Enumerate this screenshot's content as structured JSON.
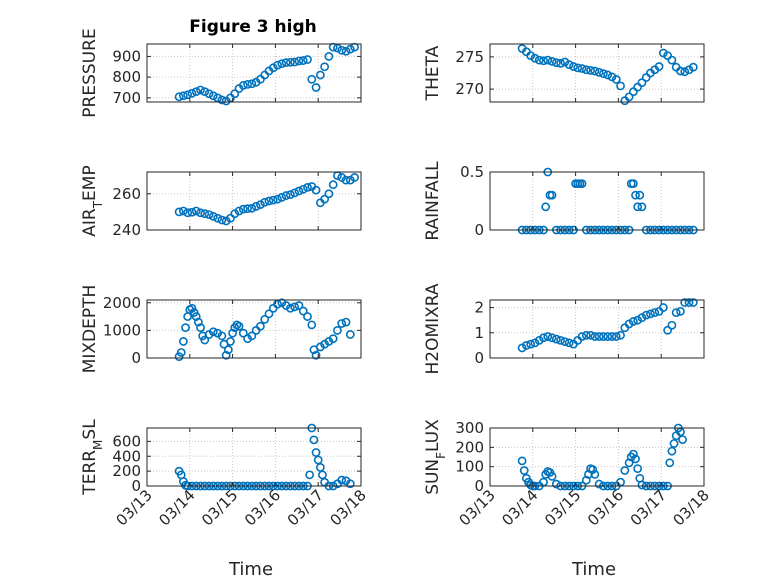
{
  "figure": {
    "title": "Figure 3 high",
    "xlabel": "Time",
    "marker_color": "#0072BD"
  },
  "chart_data": [
    {
      "type": "scatter",
      "panel": "top-left",
      "ylabel": "PRESSURE",
      "xlim": [
        0,
        5
      ],
      "ylim": [
        680,
        960
      ],
      "yticks": [
        700,
        800,
        900
      ],
      "xticks": [
        0,
        1,
        2,
        3,
        4,
        5
      ],
      "xticklabels": [
        "03/13",
        "03/14",
        "03/15",
        "03/16",
        "03/17",
        "03/18"
      ],
      "show_xticklabels": false,
      "grid": true,
      "x": [
        0.75,
        0.85,
        0.95,
        1.05,
        1.15,
        1.25,
        1.35,
        1.45,
        1.55,
        1.65,
        1.75,
        1.85,
        1.95,
        2.05,
        2.15,
        2.25,
        2.35,
        2.45,
        2.55,
        2.65,
        2.75,
        2.85,
        2.95,
        3.05,
        3.15,
        3.25,
        3.35,
        3.45,
        3.55,
        3.65,
        3.75,
        3.85,
        3.95,
        4.05,
        4.15,
        4.25,
        4.35,
        4.45,
        4.55,
        4.65,
        4.75,
        4.85
      ],
      "y": [
        705,
        710,
        715,
        722,
        730,
        738,
        730,
        720,
        710,
        700,
        690,
        685,
        700,
        720,
        745,
        760,
        765,
        768,
        775,
        790,
        810,
        830,
        845,
        858,
        865,
        870,
        872,
        873,
        878,
        880,
        885,
        790,
        750,
        810,
        850,
        900,
        945,
        940,
        930,
        925,
        935,
        945
      ]
    },
    {
      "type": "scatter",
      "panel": "top-right",
      "ylabel": "THETA",
      "xlim": [
        0,
        5
      ],
      "ylim": [
        268,
        277
      ],
      "yticks": [
        270,
        275
      ],
      "xticks": [
        0,
        1,
        2,
        3,
        4,
        5
      ],
      "xticklabels": [
        "03/13",
        "03/14",
        "03/15",
        "03/16",
        "03/17",
        "03/18"
      ],
      "show_xticklabels": false,
      "grid": true,
      "x": [
        0.75,
        0.85,
        0.95,
        1.05,
        1.15,
        1.25,
        1.35,
        1.45,
        1.55,
        1.65,
        1.75,
        1.85,
        1.95,
        2.05,
        2.15,
        2.25,
        2.35,
        2.45,
        2.55,
        2.65,
        2.75,
        2.85,
        2.95,
        3.05,
        3.15,
        3.25,
        3.35,
        3.45,
        3.55,
        3.65,
        3.75,
        3.85,
        3.95,
        4.05,
        4.15,
        4.25,
        4.35,
        4.45,
        4.55,
        4.65,
        4.75
      ],
      "y": [
        276.3,
        275.8,
        275.2,
        274.8,
        274.5,
        274.4,
        274.5,
        274.3,
        274.1,
        274.0,
        274.2,
        273.8,
        273.5,
        273.3,
        273.2,
        273.0,
        272.9,
        272.8,
        272.6,
        272.4,
        272.2,
        271.9,
        271.5,
        270.5,
        268.2,
        268.8,
        269.6,
        270.3,
        271.0,
        271.8,
        272.5,
        273.0,
        273.5,
        275.6,
        275.2,
        274.5,
        273.4,
        272.8,
        272.7,
        273.0,
        273.4
      ]
    },
    {
      "type": "scatter",
      "panel": "row2-left",
      "ylabel": "AIR_TEMP",
      "xlim": [
        0,
        5
      ],
      "ylim": [
        240,
        272
      ],
      "yticks": [
        240,
        260
      ],
      "xticks": [
        0,
        1,
        2,
        3,
        4,
        5
      ],
      "xticklabels": [
        "03/13",
        "03/14",
        "03/15",
        "03/16",
        "03/17",
        "03/18"
      ],
      "show_xticklabels": false,
      "grid": true,
      "x": [
        0.75,
        0.85,
        0.95,
        1.05,
        1.15,
        1.25,
        1.35,
        1.45,
        1.55,
        1.65,
        1.75,
        1.85,
        1.95,
        2.05,
        2.15,
        2.25,
        2.35,
        2.45,
        2.55,
        2.65,
        2.75,
        2.85,
        2.95,
        3.05,
        3.15,
        3.25,
        3.35,
        3.45,
        3.55,
        3.65,
        3.75,
        3.85,
        3.95,
        4.05,
        4.15,
        4.25,
        4.35,
        4.45,
        4.55,
        4.65,
        4.75,
        4.85
      ],
      "y": [
        250,
        250.5,
        249.5,
        249.8,
        250.5,
        249.5,
        249,
        248.5,
        247.5,
        246.5,
        245.5,
        245,
        246.5,
        249,
        250.5,
        251.5,
        251.8,
        252,
        253,
        254,
        255.3,
        256,
        256.5,
        257,
        258,
        259,
        259.5,
        260.5,
        261.5,
        262.5,
        263.5,
        264,
        262,
        255,
        257,
        260,
        265,
        270,
        269,
        267.5,
        267.5,
        269
      ]
    },
    {
      "type": "scatter",
      "panel": "row2-right",
      "ylabel": "RAINFALL",
      "xlim": [
        0,
        5
      ],
      "ylim": [
        0,
        0.5
      ],
      "yticks": [
        0,
        0.5
      ],
      "xticks": [
        0,
        1,
        2,
        3,
        4,
        5
      ],
      "xticklabels": [
        "03/13",
        "03/14",
        "03/15",
        "03/16",
        "03/17",
        "03/18"
      ],
      "show_xticklabels": false,
      "grid": true,
      "x": [
        0.75,
        0.85,
        0.95,
        1.05,
        1.15,
        1.25,
        1.3,
        1.35,
        1.4,
        1.45,
        1.55,
        1.65,
        1.75,
        1.85,
        1.95,
        2.0,
        2.05,
        2.1,
        2.15,
        2.25,
        2.35,
        2.45,
        2.55,
        2.65,
        2.75,
        2.85,
        2.95,
        3.05,
        3.15,
        3.25,
        3.3,
        3.35,
        3.4,
        3.45,
        3.5,
        3.55,
        3.65,
        3.75,
        3.85,
        3.95,
        4.05,
        4.15,
        4.25,
        4.35,
        4.45,
        4.55,
        4.65,
        4.75
      ],
      "y": [
        0,
        0,
        0,
        0,
        0,
        0,
        0.2,
        0.5,
        0.3,
        0.3,
        0,
        0,
        0,
        0,
        0,
        0.4,
        0.4,
        0.4,
        0.4,
        0,
        0,
        0,
        0,
        0,
        0,
        0,
        0,
        0,
        0,
        0,
        0.4,
        0.4,
        0.3,
        0.2,
        0.3,
        0.2,
        0,
        0,
        0,
        0,
        0,
        0,
        0,
        0,
        0,
        0,
        0,
        0
      ]
    },
    {
      "type": "scatter",
      "panel": "row3-left",
      "ylabel": "MIXDEPTH",
      "xlim": [
        0,
        5
      ],
      "ylim": [
        0,
        2100
      ],
      "yticks": [
        0,
        1000,
        2000
      ],
      "xticks": [
        0,
        1,
        2,
        3,
        4,
        5
      ],
      "xticklabels": [
        "03/13",
        "03/14",
        "03/15",
        "03/16",
        "03/17",
        "03/18"
      ],
      "show_xticklabels": false,
      "grid": true,
      "x": [
        0.75,
        0.8,
        0.85,
        0.9,
        0.95,
        1.0,
        1.05,
        1.1,
        1.15,
        1.2,
        1.25,
        1.3,
        1.35,
        1.45,
        1.55,
        1.65,
        1.75,
        1.8,
        1.85,
        1.9,
        1.95,
        2.0,
        2.05,
        2.1,
        2.15,
        2.25,
        2.35,
        2.45,
        2.55,
        2.65,
        2.75,
        2.85,
        2.95,
        3.05,
        3.15,
        3.25,
        3.35,
        3.45,
        3.55,
        3.65,
        3.75,
        3.85,
        3.9,
        3.95,
        4.05,
        4.15,
        4.25,
        4.35,
        4.45,
        4.55,
        4.65,
        4.75
      ],
      "y": [
        50,
        200,
        600,
        1100,
        1500,
        1750,
        1800,
        1650,
        1500,
        1300,
        1100,
        800,
        650,
        850,
        950,
        900,
        800,
        500,
        100,
        300,
        600,
        900,
        1100,
        1200,
        1150,
        900,
        700,
        800,
        1000,
        1150,
        1400,
        1600,
        1800,
        1950,
        2000,
        1900,
        1800,
        1850,
        1900,
        1700,
        1500,
        1200,
        300,
        100,
        400,
        500,
        600,
        700,
        1000,
        1250,
        1300,
        850
      ]
    },
    {
      "type": "scatter",
      "panel": "row3-right",
      "ylabel": "H2OMIXRA",
      "xlim": [
        0,
        5
      ],
      "ylim": [
        0,
        2.3
      ],
      "yticks": [
        0,
        1,
        2
      ],
      "xticks": [
        0,
        1,
        2,
        3,
        4,
        5
      ],
      "xticklabels": [
        "03/13",
        "03/14",
        "03/15",
        "03/16",
        "03/17",
        "03/18"
      ],
      "show_xticklabels": false,
      "grid": true,
      "x": [
        0.75,
        0.85,
        0.95,
        1.05,
        1.15,
        1.25,
        1.35,
        1.45,
        1.55,
        1.65,
        1.75,
        1.85,
        1.95,
        2.05,
        2.15,
        2.25,
        2.35,
        2.45,
        2.55,
        2.65,
        2.75,
        2.85,
        2.95,
        3.05,
        3.15,
        3.25,
        3.35,
        3.45,
        3.55,
        3.65,
        3.75,
        3.85,
        3.95,
        4.05,
        4.15,
        4.25,
        4.35,
        4.45,
        4.55,
        4.65,
        4.75
      ],
      "y": [
        0.4,
        0.5,
        0.55,
        0.6,
        0.7,
        0.8,
        0.85,
        0.8,
        0.75,
        0.7,
        0.65,
        0.6,
        0.55,
        0.7,
        0.85,
        0.9,
        0.9,
        0.85,
        0.85,
        0.85,
        0.85,
        0.85,
        0.85,
        0.9,
        1.2,
        1.35,
        1.45,
        1.5,
        1.6,
        1.7,
        1.75,
        1.8,
        1.85,
        2.0,
        1.1,
        1.3,
        1.8,
        1.85,
        2.2,
        2.2,
        2.2
      ]
    },
    {
      "type": "scatter",
      "panel": "bottom-left",
      "ylabel": "TERR_MSL",
      "xlim": [
        0,
        5
      ],
      "ylim": [
        0,
        780
      ],
      "yticks": [
        0,
        200,
        400,
        600
      ],
      "xticks": [
        0,
        1,
        2,
        3,
        4,
        5
      ],
      "xticklabels": [
        "03/13",
        "03/14",
        "03/15",
        "03/16",
        "03/17",
        "03/18"
      ],
      "show_xticklabels": true,
      "grid": true,
      "x": [
        0.75,
        0.8,
        0.85,
        0.9,
        0.95,
        1.05,
        1.15,
        1.25,
        1.35,
        1.45,
        1.55,
        1.65,
        1.75,
        1.85,
        1.95,
        2.05,
        2.15,
        2.25,
        2.35,
        2.45,
        2.55,
        2.65,
        2.75,
        2.85,
        2.95,
        3.05,
        3.15,
        3.25,
        3.35,
        3.45,
        3.55,
        3.65,
        3.75,
        3.8,
        3.85,
        3.9,
        3.95,
        4.0,
        4.05,
        4.1,
        4.15,
        4.25,
        4.35,
        4.45,
        4.55,
        4.65,
        4.75
      ],
      "y": [
        200,
        150,
        60,
        10,
        0,
        0,
        0,
        0,
        0,
        0,
        0,
        0,
        0,
        0,
        0,
        0,
        0,
        0,
        0,
        0,
        0,
        0,
        0,
        0,
        0,
        0,
        0,
        0,
        0,
        0,
        0,
        0,
        0,
        150,
        780,
        620,
        450,
        350,
        250,
        150,
        50,
        0,
        0,
        30,
        80,
        70,
        30
      ]
    },
    {
      "type": "scatter",
      "panel": "bottom-right",
      "ylabel": "SUN_FLUX",
      "xlim": [
        0,
        5
      ],
      "ylim": [
        0,
        300
      ],
      "yticks": [
        0,
        100,
        200,
        300
      ],
      "xticks": [
        0,
        1,
        2,
        3,
        4,
        5
      ],
      "xticklabels": [
        "03/13",
        "03/14",
        "03/15",
        "03/16",
        "03/17",
        "03/18"
      ],
      "show_xticklabels": true,
      "grid": true,
      "x": [
        0.75,
        0.8,
        0.85,
        0.9,
        0.95,
        1.0,
        1.05,
        1.15,
        1.25,
        1.3,
        1.35,
        1.4,
        1.45,
        1.55,
        1.65,
        1.75,
        1.85,
        1.95,
        2.05,
        2.15,
        2.25,
        2.3,
        2.35,
        2.4,
        2.45,
        2.55,
        2.65,
        2.75,
        2.85,
        2.95,
        3.05,
        3.15,
        3.25,
        3.3,
        3.35,
        3.4,
        3.45,
        3.5,
        3.55,
        3.65,
        3.75,
        3.85,
        3.95,
        4.05,
        4.15,
        4.2,
        4.25,
        4.3,
        4.35,
        4.4,
        4.45,
        4.5
      ],
      "y": [
        130,
        80,
        40,
        20,
        5,
        0,
        0,
        0,
        20,
        60,
        75,
        70,
        50,
        10,
        0,
        0,
        0,
        0,
        0,
        0,
        30,
        60,
        90,
        85,
        60,
        10,
        0,
        0,
        0,
        0,
        20,
        80,
        120,
        150,
        165,
        140,
        90,
        40,
        5,
        0,
        0,
        0,
        0,
        0,
        0,
        120,
        180,
        220,
        260,
        300,
        280,
        240
      ]
    }
  ]
}
